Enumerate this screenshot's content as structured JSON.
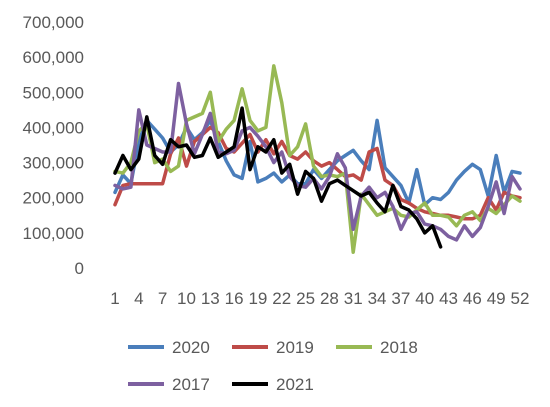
{
  "chart_data": {
    "type": "line",
    "title": "",
    "xlabel": "",
    "ylabel": "",
    "ylim": [
      0,
      700000
    ],
    "yticks": [
      0,
      100000,
      200000,
      300000,
      400000,
      500000,
      600000,
      700000
    ],
    "ytick_labels": [
      "0",
      "100,000",
      "200,000",
      "300,000",
      "400,000",
      "500,000",
      "600,000",
      "700,000"
    ],
    "xlim": [
      1,
      52
    ],
    "xtick_labels": [
      "1",
      "4",
      "7",
      "10",
      "13",
      "16",
      "19",
      "22",
      "25",
      "28",
      "31",
      "34",
      "37",
      "40",
      "43",
      "46",
      "49",
      "52"
    ],
    "xtick_positions": [
      1,
      4,
      7,
      10,
      13,
      16,
      19,
      22,
      25,
      28,
      31,
      34,
      37,
      40,
      43,
      46,
      49,
      52
    ],
    "grid": false,
    "legend_position": "bottom",
    "series": [
      {
        "name": "2020",
        "color": "#4a7ebb",
        "x": [
          1,
          2,
          3,
          4,
          5,
          6,
          7,
          8,
          9,
          10,
          11,
          12,
          13,
          14,
          15,
          16,
          17,
          18,
          19,
          20,
          21,
          22,
          23,
          24,
          25,
          26,
          27,
          28,
          29,
          30,
          31,
          32,
          33,
          34,
          35,
          36,
          37,
          38,
          39,
          40,
          41,
          42,
          43,
          44,
          45,
          46,
          47,
          48,
          49,
          50,
          51,
          52
        ],
        "values": [
          215000,
          265000,
          240000,
          360000,
          420000,
          395000,
          370000,
          330000,
          350000,
          400000,
          365000,
          385000,
          420000,
          360000,
          305000,
          265000,
          255000,
          360000,
          245000,
          255000,
          270000,
          245000,
          265000,
          240000,
          240000,
          280000,
          255000,
          280000,
          305000,
          320000,
          335000,
          305000,
          280000,
          420000,
          285000,
          260000,
          235000,
          185000,
          280000,
          180000,
          200000,
          195000,
          215000,
          250000,
          275000,
          295000,
          280000,
          205000,
          320000,
          215000,
          275000,
          270000
        ]
      },
      {
        "name": "2019",
        "color": "#be4b48",
        "x": [
          1,
          2,
          3,
          4,
          5,
          6,
          7,
          8,
          9,
          10,
          11,
          12,
          13,
          14,
          15,
          16,
          17,
          18,
          19,
          20,
          21,
          22,
          23,
          24,
          25,
          26,
          27,
          28,
          29,
          30,
          31,
          32,
          33,
          34,
          35,
          36,
          37,
          38,
          39,
          40,
          41,
          42,
          43,
          44,
          45,
          46,
          47,
          48,
          49,
          50,
          51,
          52
        ],
        "values": [
          180000,
          235000,
          240000,
          240000,
          240000,
          240000,
          240000,
          325000,
          370000,
          290000,
          360000,
          380000,
          400000,
          385000,
          340000,
          330000,
          355000,
          380000,
          330000,
          365000,
          325000,
          360000,
          320000,
          310000,
          330000,
          305000,
          290000,
          300000,
          280000,
          260000,
          265000,
          250000,
          330000,
          340000,
          250000,
          235000,
          195000,
          185000,
          170000,
          160000,
          155000,
          150000,
          150000,
          145000,
          140000,
          140000,
          150000,
          200000,
          165000,
          215000,
          205000,
          200000
        ]
      },
      {
        "name": "2018",
        "color": "#98b954",
        "x": [
          1,
          2,
          3,
          4,
          5,
          6,
          7,
          8,
          9,
          10,
          11,
          12,
          13,
          14,
          15,
          16,
          17,
          18,
          19,
          20,
          21,
          22,
          23,
          24,
          25,
          26,
          27,
          28,
          29,
          30,
          31,
          32,
          33,
          34,
          35,
          36,
          37,
          38,
          39,
          40,
          41,
          42,
          43,
          44,
          45,
          46,
          47,
          48,
          49,
          50,
          51,
          52
        ],
        "values": [
          275000,
          270000,
          300000,
          390000,
          410000,
          300000,
          310000,
          275000,
          290000,
          420000,
          430000,
          440000,
          500000,
          360000,
          395000,
          420000,
          510000,
          420000,
          390000,
          400000,
          575000,
          470000,
          320000,
          345000,
          410000,
          290000,
          260000,
          265000,
          260000,
          270000,
          45000,
          210000,
          180000,
          150000,
          160000,
          170000,
          150000,
          145000,
          165000,
          185000,
          150000,
          150000,
          145000,
          120000,
          150000,
          160000,
          135000,
          170000,
          155000,
          180000,
          205000,
          190000
        ]
      },
      {
        "name": "2017",
        "color": "#7d60a0",
        "x": [
          1,
          2,
          3,
          4,
          5,
          6,
          7,
          8,
          9,
          10,
          11,
          12,
          13,
          14,
          15,
          16,
          17,
          18,
          19,
          20,
          21,
          22,
          23,
          24,
          25,
          26,
          27,
          28,
          29,
          30,
          31,
          32,
          33,
          34,
          35,
          36,
          37,
          38,
          39,
          40,
          41,
          42,
          43,
          44,
          45,
          46,
          47,
          48,
          49,
          50,
          51,
          52
        ],
        "values": [
          235000,
          225000,
          230000,
          450000,
          350000,
          340000,
          330000,
          330000,
          525000,
          410000,
          325000,
          380000,
          440000,
          330000,
          325000,
          335000,
          390000,
          400000,
          375000,
          345000,
          300000,
          330000,
          260000,
          235000,
          230000,
          255000,
          225000,
          260000,
          325000,
          285000,
          110000,
          205000,
          230000,
          200000,
          215000,
          175000,
          110000,
          155000,
          160000,
          125000,
          120000,
          110000,
          90000,
          80000,
          120000,
          90000,
          115000,
          175000,
          245000,
          155000,
          260000,
          225000
        ]
      },
      {
        "name": "2021",
        "color": "#000000",
        "x": [
          1,
          2,
          3,
          4,
          5,
          6,
          7,
          8,
          9,
          10,
          11,
          12,
          13,
          14,
          15,
          16,
          17,
          18,
          19,
          20,
          21,
          22,
          23,
          24,
          25,
          26,
          27,
          28,
          29,
          30,
          31,
          32,
          33,
          34,
          35,
          36,
          37,
          38,
          39,
          40,
          41,
          42
        ],
        "values": [
          270000,
          320000,
          280000,
          310000,
          430000,
          320000,
          295000,
          365000,
          345000,
          350000,
          315000,
          320000,
          370000,
          315000,
          330000,
          345000,
          455000,
          280000,
          345000,
          330000,
          365000,
          270000,
          295000,
          210000,
          275000,
          255000,
          190000,
          240000,
          250000,
          235000,
          220000,
          205000,
          215000,
          185000,
          160000,
          235000,
          175000,
          165000,
          140000,
          100000,
          120000,
          60000
        ]
      }
    ]
  }
}
